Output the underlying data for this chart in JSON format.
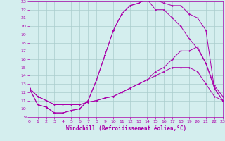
{
  "xlabel": "Windchill (Refroidissement éolien,°C)",
  "hours": [
    0,
    1,
    2,
    3,
    4,
    5,
    6,
    7,
    8,
    9,
    10,
    11,
    12,
    13,
    14,
    15,
    16,
    17,
    18,
    19,
    20,
    21,
    22,
    23
  ],
  "line1": [
    12.5,
    10.5,
    10.2,
    9.5,
    9.5,
    9.8,
    10.0,
    11.0,
    13.5,
    16.5,
    19.5,
    21.5,
    22.5,
    22.8,
    23.3,
    23.2,
    22.8,
    22.5,
    22.5,
    21.5,
    21.0,
    19.5,
    12.5,
    11.0
  ],
  "line2": [
    12.5,
    10.5,
    10.2,
    9.5,
    9.5,
    9.8,
    10.0,
    11.0,
    13.5,
    16.5,
    19.5,
    21.5,
    22.5,
    22.8,
    23.3,
    22.0,
    22.0,
    21.0,
    20.0,
    18.5,
    17.3,
    15.5,
    12.5,
    11.0
  ],
  "line3": [
    12.5,
    11.5,
    11.0,
    10.5,
    10.5,
    10.5,
    10.5,
    10.8,
    11.0,
    11.3,
    11.5,
    12.0,
    12.5,
    13.0,
    13.5,
    14.5,
    15.0,
    16.0,
    17.0,
    17.0,
    17.5,
    15.5,
    12.8,
    11.5
  ],
  "line4": [
    12.5,
    11.5,
    11.0,
    10.5,
    10.5,
    10.5,
    10.5,
    10.8,
    11.0,
    11.3,
    11.5,
    12.0,
    12.5,
    13.0,
    13.5,
    14.0,
    14.5,
    15.0,
    15.0,
    15.0,
    14.5,
    13.0,
    11.5,
    11.0
  ],
  "line_color": "#aa00aa",
  "bg_color": "#d4eeee",
  "grid_color": "#aacccc",
  "ylim": [
    9,
    23
  ],
  "xlim": [
    0,
    23
  ],
  "yticks": [
    9,
    10,
    11,
    12,
    13,
    14,
    15,
    16,
    17,
    18,
    19,
    20,
    21,
    22,
    23
  ],
  "xticks": [
    0,
    1,
    2,
    3,
    4,
    5,
    6,
    7,
    8,
    9,
    10,
    11,
    12,
    13,
    14,
    15,
    16,
    17,
    18,
    19,
    20,
    21,
    22,
    23
  ]
}
